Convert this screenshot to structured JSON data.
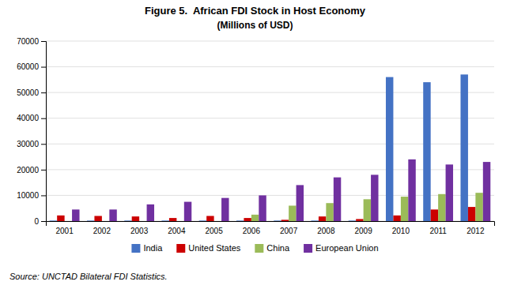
{
  "chart_data": {
    "type": "bar",
    "title": "Figure 5.  African FDI Stock in Host Economy",
    "subtitle": "(Millions of USD)",
    "categories": [
      "2001",
      "2002",
      "2003",
      "2004",
      "2005",
      "2006",
      "2007",
      "2008",
      "2009",
      "2010",
      "2011",
      "2012"
    ],
    "series": [
      {
        "name": "India",
        "color": "#4472C4",
        "values": [
          200,
          200,
          200,
          200,
          200,
          200,
          200,
          200,
          200,
          56000,
          54000,
          57000
        ]
      },
      {
        "name": "United States",
        "color": "#CC0000",
        "values": [
          2200,
          2000,
          1800,
          1200,
          2000,
          1200,
          500,
          1800,
          800,
          2200,
          4500,
          5500
        ]
      },
      {
        "name": "China",
        "color": "#9BBB59",
        "values": [
          0,
          0,
          0,
          0,
          0,
          2500,
          6000,
          7000,
          8500,
          9500,
          10500,
          11000
        ]
      },
      {
        "name": "European Union",
        "color": "#7030A0",
        "values": [
          4500,
          4500,
          6500,
          7500,
          9000,
          10000,
          14000,
          17000,
          18000,
          24000,
          22000,
          23000
        ]
      }
    ],
    "ylim": [
      0,
      70000
    ],
    "yticks": [
      0,
      10000,
      20000,
      30000,
      40000,
      50000,
      60000,
      70000
    ],
    "grid": true,
    "legend": "bottom",
    "annotations": [
      "Source: UNCTAD Bilateral FDI Statistics."
    ]
  }
}
